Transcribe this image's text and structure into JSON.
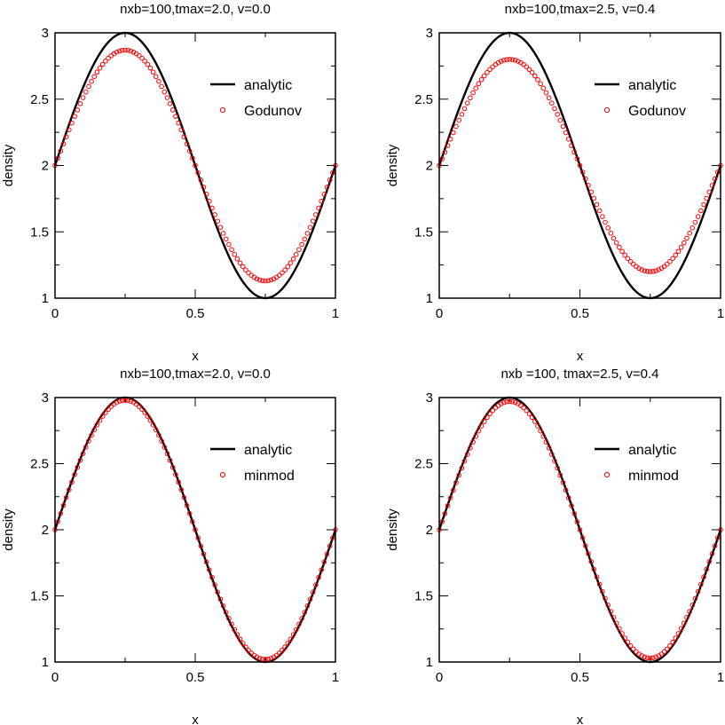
{
  "chart_data": [
    {
      "type": "line",
      "title": "nxb=100,tmax=2.0, v=0.0",
      "xlabel": "x",
      "ylabel": "density",
      "xlim": [
        0,
        1
      ],
      "ylim": [
        1,
        3
      ],
      "xticks": [
        "0",
        "0.5",
        "1"
      ],
      "yticks": [
        "1",
        "1.5",
        "2",
        "2.5",
        "3"
      ],
      "grid": false,
      "legend_position": "top-right",
      "series": [
        {
          "name": "analytic",
          "style": "solid line",
          "color": "#000000",
          "function": "2 + sin(2*pi*x)"
        },
        {
          "name": "Godunov",
          "style": "open circles",
          "color": "#ff0000",
          "amplitude": 0.87,
          "points": 101,
          "x": [
            0,
            1
          ]
        }
      ]
    },
    {
      "type": "line",
      "title": "nxb=100,tmax=2.5, v=0.4",
      "xlabel": "x",
      "ylabel": "density",
      "xlim": [
        0,
        1
      ],
      "ylim": [
        1,
        3
      ],
      "xticks": [
        "0",
        "0.5",
        "1"
      ],
      "yticks": [
        "1",
        "1.5",
        "2",
        "2.5",
        "3"
      ],
      "grid": false,
      "legend_position": "top-right",
      "series": [
        {
          "name": "analytic",
          "style": "solid line",
          "color": "#000000",
          "function": "2 + sin(2*pi*x)"
        },
        {
          "name": "Godunov",
          "style": "open circles",
          "color": "#ff0000",
          "amplitude": 0.8,
          "points": 101,
          "x": [
            0,
            1
          ]
        }
      ]
    },
    {
      "type": "line",
      "title": "nxb=100,tmax=2.0, v=0.0",
      "xlabel": "x",
      "ylabel": "density",
      "xlim": [
        0,
        1
      ],
      "ylim": [
        1,
        3
      ],
      "xticks": [
        "0",
        "0.5",
        "1"
      ],
      "yticks": [
        "1",
        "1.5",
        "2",
        "2.5",
        "3"
      ],
      "grid": false,
      "legend_position": "top-right",
      "series": [
        {
          "name": "analytic",
          "style": "solid line",
          "color": "#000000",
          "function": "2 + sin(2*pi*x)"
        },
        {
          "name": "minmod",
          "style": "open circles",
          "color": "#ff0000",
          "amplitude": 0.98,
          "points": 101,
          "x": [
            0,
            1
          ]
        }
      ]
    },
    {
      "type": "line",
      "title": "nxb =100, tmax=2.5, v=0.4",
      "xlabel": "x",
      "ylabel": "density",
      "xlim": [
        0,
        1
      ],
      "ylim": [
        1,
        3
      ],
      "xticks": [
        "0",
        "0.5",
        "1"
      ],
      "yticks": [
        "1",
        "1.5",
        "2",
        "2.5",
        "3"
      ],
      "grid": false,
      "legend_position": "top-right",
      "series": [
        {
          "name": "analytic",
          "style": "solid line",
          "color": "#000000",
          "function": "2 + sin(2*pi*x)"
        },
        {
          "name": "minmod",
          "style": "open circles",
          "color": "#ff0000",
          "amplitude": 0.97,
          "points": 101,
          "x": [
            0,
            1
          ]
        }
      ]
    }
  ]
}
